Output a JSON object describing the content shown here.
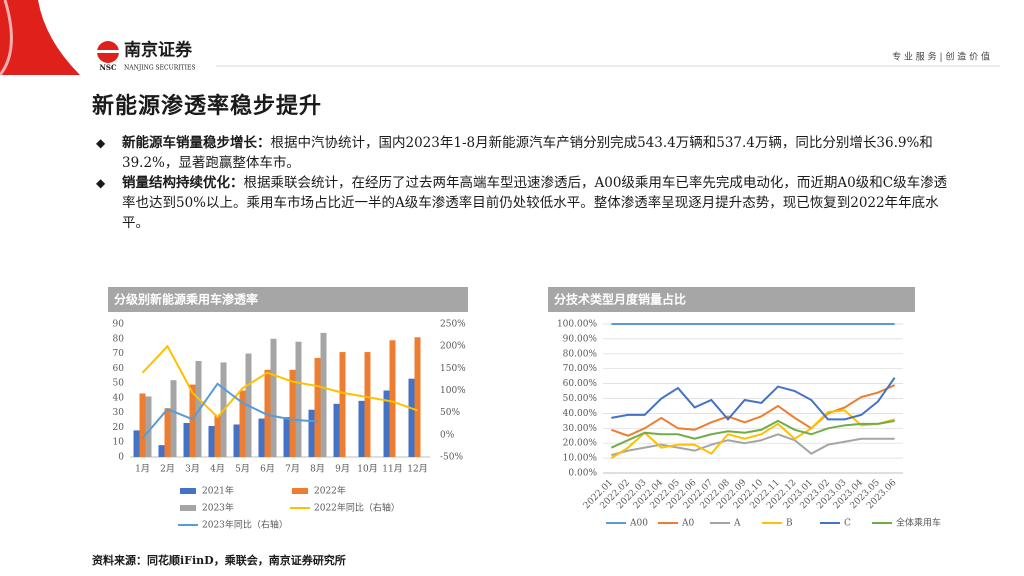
{
  "header": {
    "logo_abbr": "NSC",
    "company": "南京证券",
    "company_en": "NANJING SECURITIES",
    "tagline": "专 业 服 务 | 创 造 价 值"
  },
  "title": "新能源渗透率稳步提升",
  "bullets": [
    {
      "lead": "新能源车销量稳步增长：",
      "text": "根据中汽协统计，国内2023年1-8月新能源汽车产销分别完成543.4万辆和537.4万辆，同比分别增长36.9%和39.2%，显著跑赢整体车市。"
    },
    {
      "lead": "销量结构持续优化：",
      "text": "根据乘联会统计，在经历了过去两年高端车型迅速渗透后，A00级乘用车已率先完成电动化，而近期A0级和C级车渗透率也达到50%以上。乘用车市场占比近一半的A级车渗透率目前仍处较低水平。整体渗透率呈现逐月提升态势，现已恢复到2022年年底水平。"
    }
  ],
  "source": "资料来源：同花顺iFinD，乘联会，南京证券研究所",
  "chart_data": [
    {
      "type": "bar",
      "title": "分级别新能源乘用车渗透率",
      "categories": [
        "1月",
        "2月",
        "3月",
        "4月",
        "5月",
        "6月",
        "7月",
        "8月",
        "9月",
        "10月",
        "11月",
        "12月"
      ],
      "ylim": [
        0,
        90
      ],
      "yticks": [
        0,
        10,
        20,
        30,
        40,
        50,
        60,
        70,
        80,
        90
      ],
      "y2lim": [
        -50,
        250
      ],
      "y2ticks": [
        {
          "value": -50,
          "label": "-50%"
        },
        {
          "value": 0,
          "label": "0%"
        },
        {
          "value": 50,
          "label": "50%"
        },
        {
          "value": 100,
          "label": "100%"
        },
        {
          "value": 150,
          "label": "150%"
        },
        {
          "value": 200,
          "label": "200%"
        },
        {
          "value": 250,
          "label": "250%"
        }
      ],
      "series": [
        {
          "name": "2021年",
          "type": "bar",
          "color": "#4472c4",
          "values": [
            18,
            8,
            23,
            21,
            22,
            26,
            27,
            32,
            36,
            38,
            45,
            53
          ]
        },
        {
          "name": "2022年",
          "type": "bar",
          "color": "#ed7d31",
          "values": [
            43,
            33,
            49,
            28,
            45,
            59,
            59,
            67,
            71,
            71,
            79,
            81
          ]
        },
        {
          "name": "2023年",
          "type": "bar",
          "color": "#a5a5a5",
          "values": [
            41,
            52,
            65,
            64,
            70,
            80,
            78,
            84,
            null,
            null,
            null,
            null
          ]
        },
        {
          "name": "2022年同比（右轴）",
          "type": "line",
          "axis": "y2",
          "color": "#ffc000",
          "values": [
            140,
            200,
            95,
            40,
            105,
            140,
            120,
            110,
            95,
            85,
            75,
            55
          ]
        },
        {
          "name": "2023年同比（右轴）",
          "type": "line",
          "axis": "y2",
          "color": "#5b9bd5",
          "values": [
            -8,
            58,
            35,
            115,
            72,
            45,
            34,
            30,
            null,
            null,
            null,
            null
          ]
        }
      ]
    },
    {
      "type": "line",
      "title": "分技术类型月度销量占比",
      "categories": [
        "2022.01",
        "2022.02",
        "2022.03",
        "2022.04",
        "2022.05",
        "2022.06",
        "2022.07",
        "2022.08",
        "2022.09",
        "2022.10",
        "2022.11",
        "2022.12",
        "2023.01",
        "2023.02",
        "2023.03",
        "2023.04",
        "2023.05",
        "2023.06"
      ],
      "ylim": [
        0,
        100
      ],
      "yticks": [
        {
          "value": 0,
          "label": "0.00%"
        },
        {
          "value": 10,
          "label": "10.00%"
        },
        {
          "value": 20,
          "label": "20.00%"
        },
        {
          "value": 30,
          "label": "30.00%"
        },
        {
          "value": 40,
          "label": "40.00%"
        },
        {
          "value": 50,
          "label": "50.00%"
        },
        {
          "value": 60,
          "label": "60.00%"
        },
        {
          "value": 70,
          "label": "70.00%"
        },
        {
          "value": 80,
          "label": "80.00%"
        },
        {
          "value": 90,
          "label": "90.00%"
        },
        {
          "value": 100,
          "label": "100.00%"
        }
      ],
      "grid": true,
      "series": [
        {
          "name": "A00",
          "color": "#5b9bd5",
          "values": [
            100,
            100,
            100,
            100,
            100,
            100,
            100,
            100,
            100,
            100,
            100,
            100,
            100,
            100,
            100,
            100,
            100,
            100
          ]
        },
        {
          "name": "A0",
          "color": "#ed7d31",
          "values": [
            29,
            25,
            30,
            37,
            30,
            29,
            34,
            38,
            34,
            38,
            45,
            37,
            30,
            40,
            44,
            51,
            54,
            59
          ]
        },
        {
          "name": "A",
          "color": "#a5a5a5",
          "values": [
            12,
            15,
            17,
            19,
            17,
            15,
            19,
            22,
            20,
            22,
            26,
            22,
            13,
            19,
            21,
            23,
            23,
            23
          ]
        },
        {
          "name": "B",
          "color": "#ffc000",
          "values": [
            10,
            17,
            27,
            17,
            19,
            19,
            13,
            26,
            23,
            26,
            33,
            23,
            30,
            41,
            42,
            32,
            33,
            36
          ]
        },
        {
          "name": "C",
          "color": "#4472c4",
          "values": [
            37,
            39,
            39,
            50,
            57,
            44,
            49,
            36,
            49,
            47,
            58,
            55,
            49,
            36,
            36,
            39,
            48,
            64
          ]
        },
        {
          "name": "全体乘用车",
          "color": "#70ad47",
          "values": [
            17,
            22,
            27,
            26,
            26,
            23,
            26,
            28,
            27,
            29,
            35,
            29,
            26,
            30,
            32,
            33,
            33,
            35
          ]
        }
      ]
    }
  ]
}
